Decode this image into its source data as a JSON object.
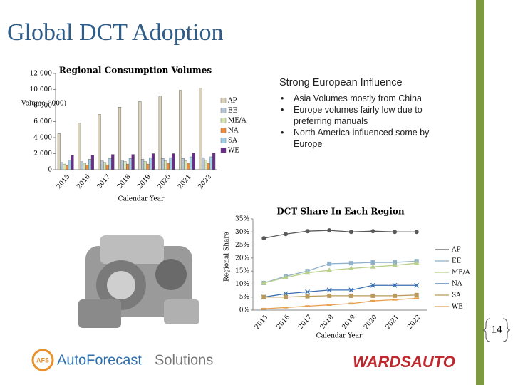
{
  "title": "Global DCT Adoption",
  "bullet_box": {
    "heading": "Strong European Influence",
    "bullets": [
      "Asia Volumes mostly from China",
      "Europe volumes fairly low due to preferring manuals",
      "North America influenced some by Europe"
    ]
  },
  "chart_data": [
    {
      "type": "bar",
      "title": "Regional Consumption Volumes",
      "y_label": "Volume ('000)",
      "x_label": "Calendar Year",
      "categories": [
        "2015",
        "2016",
        "2017",
        "2018",
        "2019",
        "2020",
        "2021",
        "2022"
      ],
      "series": [
        {
          "name": "AP",
          "color": "#d9d2b8",
          "values": [
            4500,
            5800,
            6900,
            7800,
            8500,
            9200,
            9900,
            10200
          ]
        },
        {
          "name": "EE",
          "color": "#b8c8d8",
          "values": [
            900,
            1000,
            1100,
            1200,
            1300,
            1400,
            1400,
            1500
          ]
        },
        {
          "name": "ME/A",
          "color": "#d6e6b4",
          "values": [
            700,
            800,
            900,
            1000,
            1000,
            1100,
            1100,
            1200
          ]
        },
        {
          "name": "NA",
          "color": "#f08c3c",
          "values": [
            500,
            600,
            600,
            700,
            700,
            800,
            800,
            800
          ]
        },
        {
          "name": "SA",
          "color": "#9fd0e8",
          "values": [
            1200,
            1300,
            1400,
            1400,
            1500,
            1500,
            1600,
            1600
          ]
        },
        {
          "name": "WE",
          "color": "#6a2e8a",
          "values": [
            1800,
            1800,
            1900,
            1900,
            2000,
            2000,
            2100,
            2100
          ]
        }
      ],
      "ylim": [
        0,
        12000
      ],
      "yticks": [
        0,
        {
          "value": 2000,
          "label": "2 000"
        },
        {
          "value": 4000,
          "label": "4 000"
        },
        {
          "value": 6000,
          "label": "6 000"
        },
        {
          "value": 8000,
          "label": "8 000"
        },
        {
          "value": 10000,
          "label": "10 000"
        },
        {
          "value": 12000,
          "label": "12 000"
        }
      ],
      "grid": false,
      "legend": "right"
    },
    {
      "type": "line",
      "title": "DCT Share In Each Region",
      "y_label": "Regional Share",
      "x_label": "Calendar Year",
      "categories": [
        "2015",
        "2016",
        "2017",
        "2018",
        "2019",
        "2020",
        "2021",
        "2022"
      ],
      "series": [
        {
          "name": "AP",
          "color": "#595959",
          "values": [
            27.6,
            29.2,
            30.3,
            30.6,
            30,
            30.3,
            30,
            30
          ]
        },
        {
          "name": "EE",
          "color": "#8fb0c8",
          "values": [
            10.4,
            13,
            15,
            17.8,
            18,
            18.3,
            18.3,
            18.8
          ]
        },
        {
          "name": "ME/A",
          "color": "#b8cf8a",
          "values": [
            10.4,
            12.5,
            14.3,
            15.3,
            16,
            16.6,
            17.2,
            18
          ]
        },
        {
          "name": "NA",
          "color": "#3a6fb0",
          "values": [
            5,
            6.3,
            7,
            7.7,
            7.7,
            9.5,
            9.5,
            9.5
          ]
        },
        {
          "name": "SA",
          "color": "#b89a5a",
          "values": [
            5,
            5,
            5.3,
            5.5,
            5.5,
            5.5,
            5.5,
            5.8
          ]
        },
        {
          "name": "WE",
          "color": "#e8a050",
          "values": [
            0.5,
            1,
            1.5,
            2,
            2.5,
            3.5,
            4,
            4.5
          ]
        }
      ],
      "ylim": [
        0,
        35
      ],
      "yticks": [
        {
          "value": 0,
          "label": "0%"
        },
        {
          "value": 5,
          "label": "5%"
        },
        {
          "value": 10,
          "label": "10%"
        },
        {
          "value": 15,
          "label": "15%"
        },
        {
          "value": 20,
          "label": "20%"
        },
        {
          "value": 25,
          "label": "25%"
        },
        {
          "value": 30,
          "label": "30%"
        },
        {
          "value": 35,
          "label": "35%"
        }
      ],
      "grid": false,
      "legend": "right"
    }
  ],
  "footer": {
    "logo_icon": "AFS",
    "brand": "AutoForecast",
    "brand_suffix": "Solutions",
    "partner": "WARDSAUTO"
  },
  "page_number": "14"
}
